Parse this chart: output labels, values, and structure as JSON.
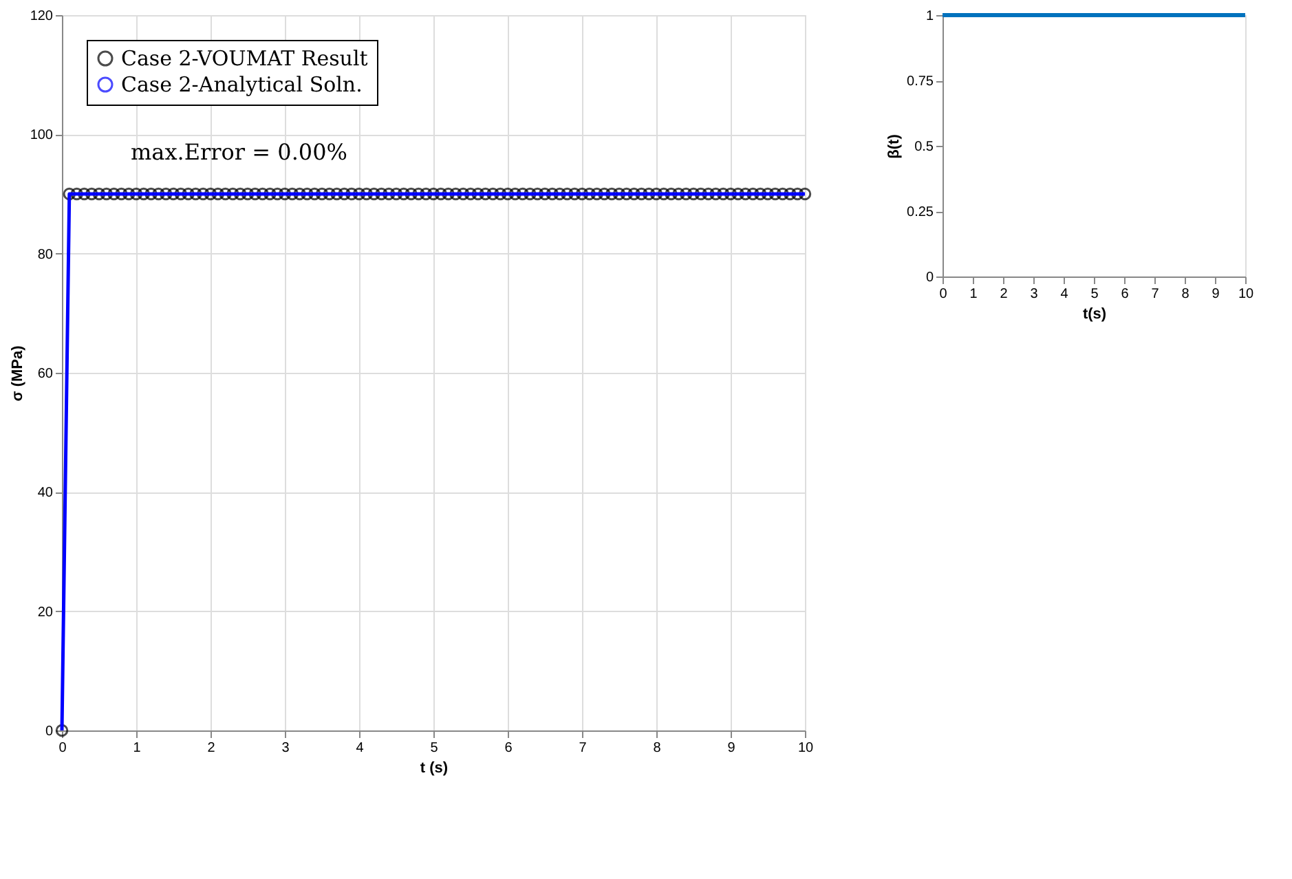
{
  "chart_data": [
    {
      "type": "line",
      "xlabel": "t (s)",
      "ylabel": "σ (MPa)",
      "xlim": [
        0,
        10
      ],
      "ylim": [
        0,
        120
      ],
      "xticks": [
        0,
        1,
        2,
        3,
        4,
        5,
        6,
        7,
        8,
        9,
        10
      ],
      "yticks": [
        0,
        20,
        40,
        60,
        80,
        100,
        120
      ],
      "grid": true,
      "legend": "top left",
      "annotations": [
        "max.Error = 0.00%"
      ],
      "series": [
        {
          "name": "Case 2-VOUMAT Result",
          "type": "scatter",
          "marker": "circle",
          "color": "#000000",
          "x": [
            0,
            0.1,
            0.2,
            0.3,
            0.4,
            0.5,
            0.6,
            0.7,
            0.8,
            0.9,
            1,
            1.1,
            1.2,
            1.3,
            1.4,
            1.5,
            1.6,
            1.7,
            1.8,
            1.9,
            2,
            2.1,
            2.2,
            2.3,
            2.4,
            2.5,
            2.6,
            2.7,
            2.8,
            2.9,
            3,
            3.1,
            3.2,
            3.3,
            3.4,
            3.5,
            3.6,
            3.7,
            3.8,
            3.9,
            4,
            4.1,
            4.2,
            4.3,
            4.4,
            4.5,
            4.6,
            4.7,
            4.8,
            4.9,
            5,
            5.1,
            5.2,
            5.3,
            5.4,
            5.5,
            5.6,
            5.7,
            5.8,
            5.9,
            6,
            6.1,
            6.2,
            6.3,
            6.4,
            6.5,
            6.6,
            6.7,
            6.8,
            6.9,
            7,
            7.1,
            7.2,
            7.3,
            7.4,
            7.5,
            7.6,
            7.7,
            7.8,
            7.9,
            8,
            8.1,
            8.2,
            8.3,
            8.4,
            8.5,
            8.6,
            8.7,
            8.8,
            8.9,
            9,
            9.1,
            9.2,
            9.3,
            9.4,
            9.5,
            9.6,
            9.7,
            9.8,
            9.9,
            10
          ],
          "values": [
            0,
            90,
            90,
            90,
            90,
            90,
            90,
            90,
            90,
            90,
            90,
            90,
            90,
            90,
            90,
            90,
            90,
            90,
            90,
            90,
            90,
            90,
            90,
            90,
            90,
            90,
            90,
            90,
            90,
            90,
            90,
            90,
            90,
            90,
            90,
            90,
            90,
            90,
            90,
            90,
            90,
            90,
            90,
            90,
            90,
            90,
            90,
            90,
            90,
            90,
            90,
            90,
            90,
            90,
            90,
            90,
            90,
            90,
            90,
            90,
            90,
            90,
            90,
            90,
            90,
            90,
            90,
            90,
            90,
            90,
            90,
            90,
            90,
            90,
            90,
            90,
            90,
            90,
            90,
            90,
            90,
            90,
            90,
            90,
            90,
            90,
            90,
            90,
            90,
            90,
            90,
            90,
            90,
            90,
            90,
            90,
            90,
            90,
            90,
            90,
            90
          ]
        },
        {
          "name": "Case 2-Analytical Soln.",
          "type": "line",
          "marker": "none",
          "color": "#0000ff",
          "x": [
            0,
            0.1,
            10
          ],
          "values": [
            0,
            90,
            90
          ]
        }
      ]
    },
    {
      "type": "line",
      "xlabel": "t(s)",
      "ylabel": "β(t)",
      "xlim": [
        0,
        10
      ],
      "ylim": [
        0,
        1
      ],
      "xticks": [
        0,
        1,
        2,
        3,
        4,
        5,
        6,
        7,
        8,
        9,
        10
      ],
      "yticks": [
        0,
        0.25,
        0.5,
        0.75,
        1
      ],
      "grid": false,
      "legend": false,
      "series": [
        {
          "type": "line",
          "marker": "none",
          "color": "#0072bd",
          "x": [
            0,
            10
          ],
          "values": [
            1,
            1
          ]
        }
      ]
    }
  ]
}
